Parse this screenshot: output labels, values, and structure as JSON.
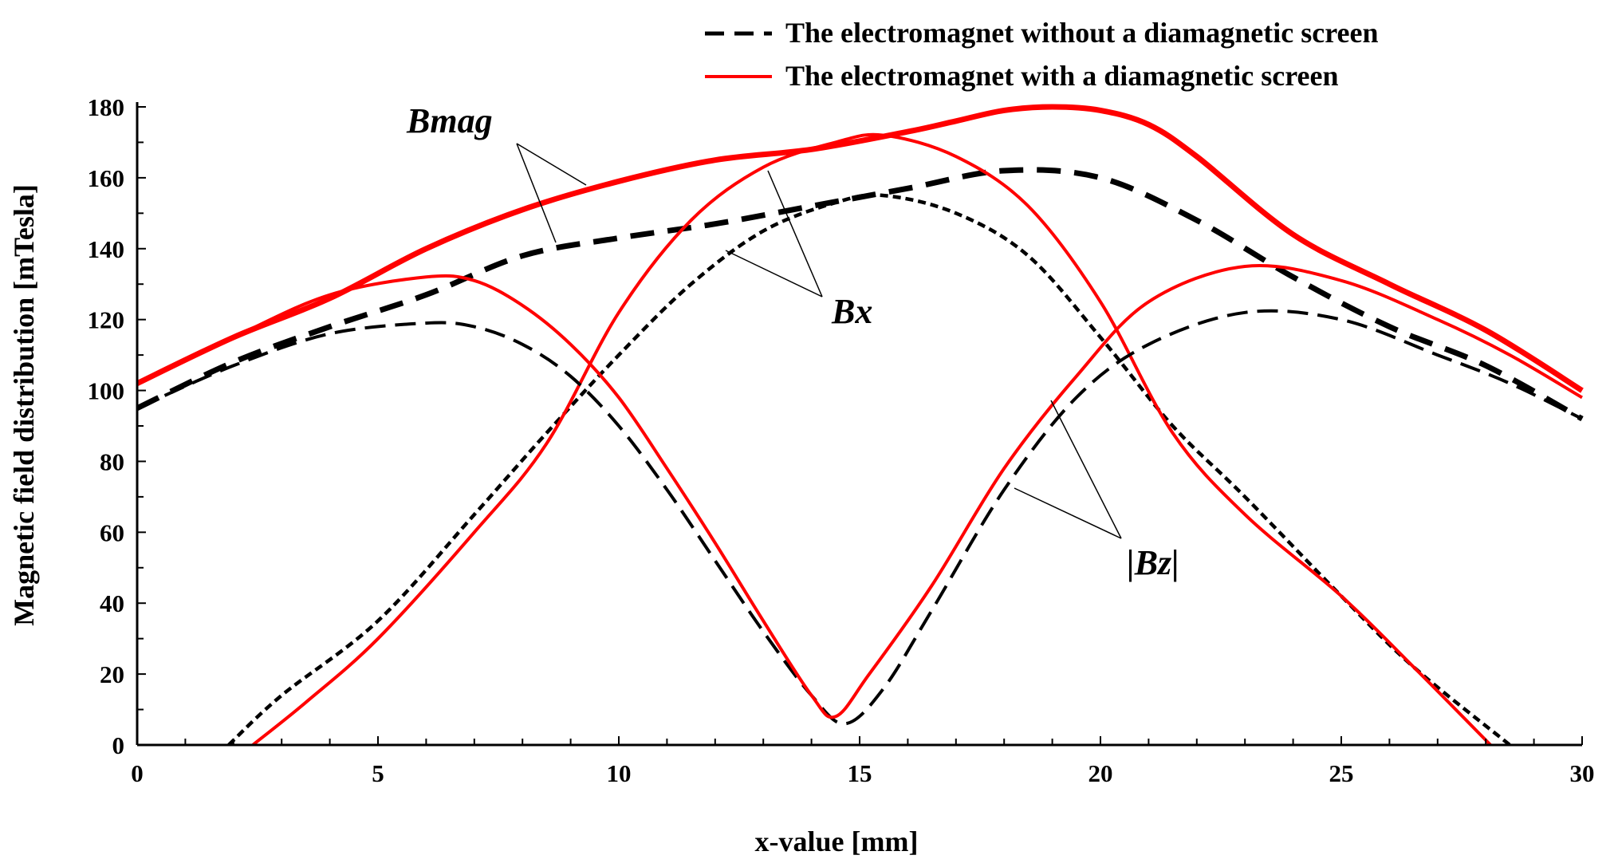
{
  "chart_data": {
    "type": "line",
    "title": "",
    "xlabel": "x-value [mm]",
    "ylabel": "Magnetic field distribution [mTesla]",
    "xlim": [
      0,
      30
    ],
    "ylim": [
      0,
      180
    ],
    "xticks": [
      0,
      5,
      10,
      15,
      20,
      25,
      30
    ],
    "yticks": [
      0,
      20,
      40,
      60,
      80,
      100,
      120,
      140,
      160,
      180
    ],
    "grid": false,
    "legend_position": "top-right",
    "legend": [
      {
        "label": "The electromagnet without a diamagnetic screen",
        "color": "#000000",
        "style": "dashed"
      },
      {
        "label": "The electromagnet with a diamagnetic screen",
        "color": "#ff0000",
        "style": "solid"
      }
    ],
    "annotations": [
      {
        "text": "Bmag",
        "targets": [
          "Bmag with screen",
          "Bmag without screen"
        ]
      },
      {
        "text": "Bx",
        "targets": [
          "Bx with screen",
          "Bx without screen"
        ]
      },
      {
        "text": "|Bz|",
        "targets": [
          "|Bz| with screen",
          "|Bz| without screen"
        ]
      }
    ],
    "series": [
      {
        "name": "Bmag without screen",
        "quantity": "Bmag",
        "screen": false,
        "color": "#000000",
        "style": "dashed-thick",
        "x": [
          0,
          2,
          4,
          6,
          8,
          10,
          12,
          14,
          16,
          18,
          20,
          22,
          24,
          26,
          28,
          30
        ],
        "y": [
          95,
          108,
          118,
          127,
          138,
          143,
          147,
          152,
          157,
          162,
          160,
          148,
          132,
          118,
          107,
          92
        ]
      },
      {
        "name": "Bmag with screen",
        "quantity": "Bmag",
        "screen": true,
        "color": "#ff0000",
        "style": "solid-thick",
        "x": [
          0,
          2,
          4,
          6,
          8,
          10,
          12,
          14,
          16,
          17,
          18,
          19,
          20,
          21,
          22,
          24,
          26,
          28,
          30
        ],
        "y": [
          102,
          115,
          126,
          140,
          151,
          159,
          165,
          168,
          173,
          176,
          179,
          180,
          179,
          175,
          166,
          144,
          130,
          117,
          100
        ]
      },
      {
        "name": "Bx without screen",
        "quantity": "Bx",
        "screen": false,
        "color": "#000000",
        "style": "dashed-fine",
        "x": [
          1.9,
          3,
          5,
          7,
          8.5,
          10,
          11.5,
          13,
          14.5,
          15.5,
          17,
          18.5,
          20,
          21.5,
          23,
          25,
          26.5,
          28.5
        ],
        "y": [
          0,
          14,
          35,
          65,
          88,
          110,
          130,
          145,
          153,
          155,
          150,
          138,
          115,
          90,
          70,
          42,
          22,
          0
        ]
      },
      {
        "name": "Bx with screen",
        "quantity": "Bx",
        "screen": true,
        "color": "#ff0000",
        "style": "solid",
        "x": [
          2.4,
          3.5,
          5,
          7,
          8.5,
          10,
          11.5,
          13,
          14.5,
          15.5,
          17,
          18.5,
          20,
          21.5,
          23,
          25,
          26.5,
          28.1
        ],
        "y": [
          0,
          12,
          30,
          60,
          85,
          122,
          148,
          163,
          170,
          172,
          166,
          152,
          125,
          88,
          65,
          42,
          22,
          0
        ]
      },
      {
        "name": "|Bz| without screen",
        "quantity": "|Bz|",
        "screen": false,
        "color": "#000000",
        "style": "dashed",
        "x": [
          0,
          2,
          4,
          6,
          7,
          8,
          9,
          10,
          11,
          12,
          13,
          14,
          14.7,
          15.5,
          16.5,
          18,
          19.5,
          21,
          23,
          25,
          27,
          28.5,
          30
        ],
        "y": [
          95,
          107,
          116,
          119,
          118,
          113,
          104,
          90,
          72,
          52,
          32,
          14,
          6,
          16,
          38,
          72,
          98,
          113,
          122,
          120,
          110,
          102,
          92
        ]
      },
      {
        "name": "|Bz| with screen",
        "quantity": "|Bz|",
        "screen": true,
        "color": "#ff0000",
        "style": "solid",
        "x": [
          0,
          2,
          4,
          6,
          7,
          8,
          9,
          10,
          11,
          12,
          13,
          14,
          14.5,
          15.2,
          16.5,
          18,
          19.5,
          21,
          23,
          25,
          27,
          28.5,
          30
        ],
        "y": [
          102,
          115,
          127,
          132,
          131,
          124,
          113,
          98,
          78,
          57,
          35,
          14,
          8,
          20,
          45,
          78,
          104,
          125,
          135,
          131,
          120,
          110,
          98
        ]
      }
    ]
  }
}
